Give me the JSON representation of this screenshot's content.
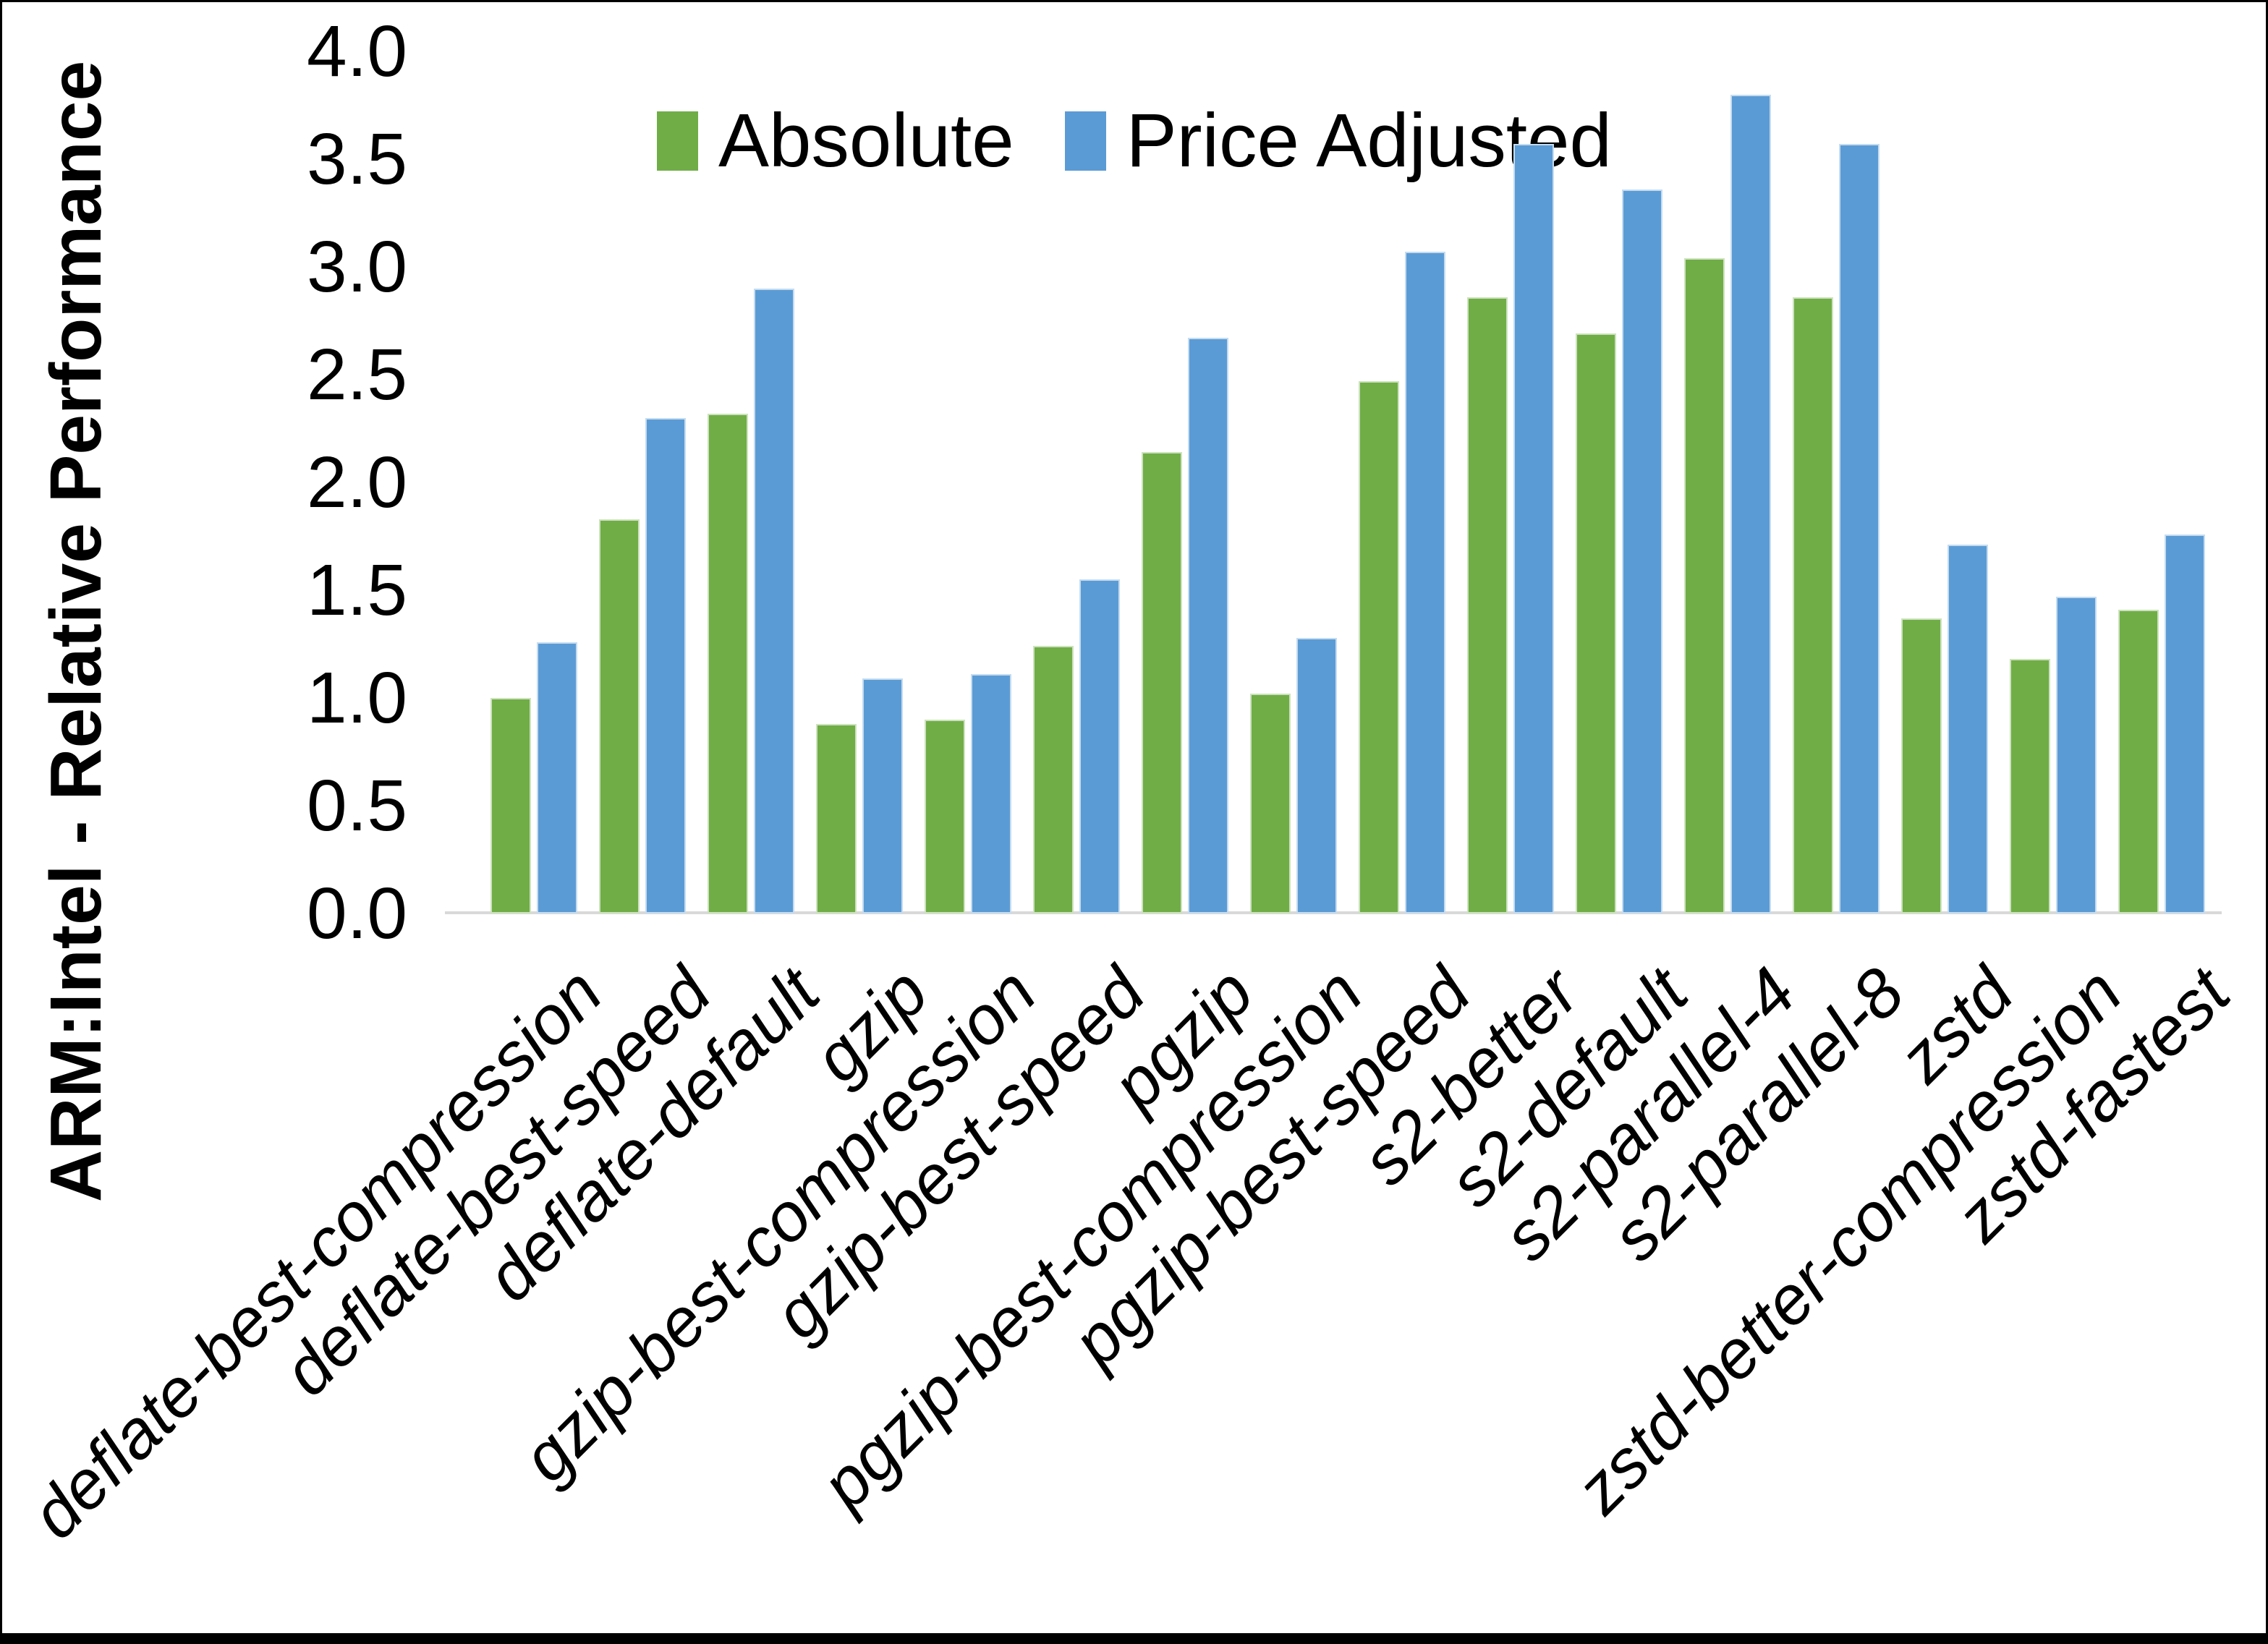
{
  "chart_data": {
    "type": "bar",
    "title": "",
    "xlabel": "",
    "ylabel": "ARM:Intel - Relative Performance",
    "ylim": [
      0.0,
      4.0
    ],
    "ytick_step": 0.5,
    "ytick_labels": [
      "0.0",
      "0.5",
      "1.0",
      "1.5",
      "2.0",
      "2.5",
      "3.0",
      "3.5",
      "4.0"
    ],
    "grid": false,
    "legend_position": "top-center",
    "axis_line_color": "#d9d9d9",
    "text_color": "#000000",
    "background_color": "#ffffff",
    "categories": [
      "deflate-best-compression",
      "deflate-best-speed",
      "deflate-default",
      "gzip",
      "gzip-best-compression",
      "gzip-best-speed",
      "pgzip",
      "pgzip-best-compression",
      "pgzip-best-speed",
      "s2-better",
      "s2-default",
      "s2-parallel-4",
      "s2-parallel-8",
      "zstd",
      "zstd-better-compression",
      "zstd-fastest"
    ],
    "series": [
      {
        "name": "Absolute",
        "color": "#70AD47",
        "values": [
          1.0,
          1.83,
          2.32,
          0.88,
          0.9,
          1.24,
          2.14,
          1.02,
          2.47,
          2.86,
          2.69,
          3.04,
          2.86,
          1.37,
          1.18,
          1.41
        ]
      },
      {
        "name": "Price Adjusted",
        "color": "#5B9BD5",
        "values": [
          1.26,
          2.3,
          2.9,
          1.09,
          1.11,
          1.55,
          2.67,
          1.28,
          3.07,
          3.57,
          3.36,
          3.8,
          3.57,
          1.71,
          1.47,
          1.76
        ]
      }
    ]
  }
}
